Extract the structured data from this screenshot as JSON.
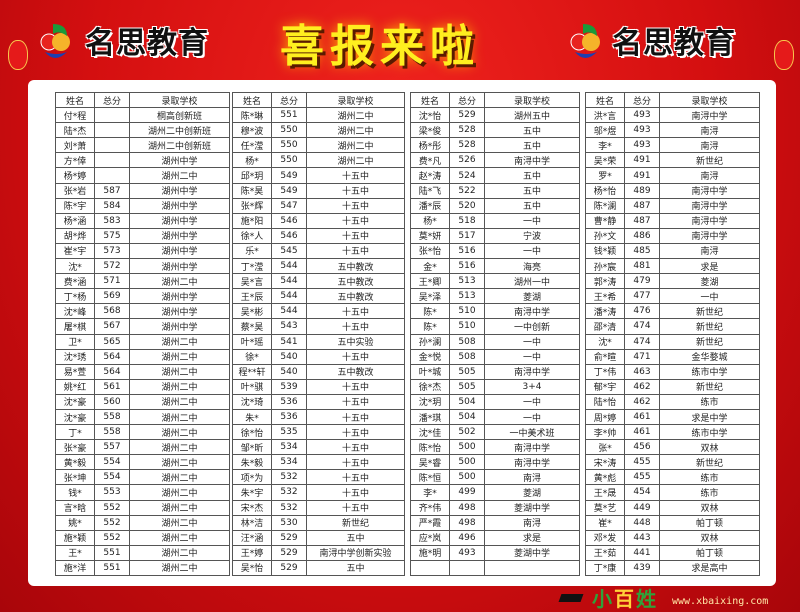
{
  "header": {
    "brand": "名思教育",
    "title": "喜报来啦"
  },
  "columns": [
    "姓名",
    "总分",
    "录取学校"
  ],
  "tables": [
    [
      [
        "付*程",
        "",
        "桐高创新班"
      ],
      [
        "陆*杰",
        "",
        "湖州二中创新班"
      ],
      [
        "刘*萧",
        "",
        "湖州二中创新班"
      ],
      [
        "方*倖",
        "",
        "湖州中学"
      ],
      [
        "杨*婷",
        "",
        "湖州二中"
      ],
      [
        "张*岩",
        "587",
        "湖州中学"
      ],
      [
        "陈*宇",
        "584",
        "湖州中学"
      ],
      [
        "杨*涵",
        "583",
        "湖州中学"
      ],
      [
        "胡*烨",
        "575",
        "湖州中学"
      ],
      [
        "崔*宇",
        "573",
        "湖州中学"
      ],
      [
        "沈*",
        "572",
        "湖州中学"
      ],
      [
        "费*涵",
        "571",
        "湖州二中"
      ],
      [
        "丁*杨",
        "569",
        "湖州中学"
      ],
      [
        "沈*峰",
        "568",
        "湖州中学"
      ],
      [
        "屠*棋",
        "567",
        "湖州中学"
      ],
      [
        "卫*",
        "565",
        "湖州二中"
      ],
      [
        "沈*琇",
        "564",
        "湖州二中"
      ],
      [
        "易*萱",
        "564",
        "湖州二中"
      ],
      [
        "姚*红",
        "561",
        "湖州二中"
      ],
      [
        "沈*豪",
        "560",
        "湖州二中"
      ],
      [
        "沈*豪",
        "558",
        "湖州二中"
      ],
      [
        "丁*",
        "558",
        "湖州二中"
      ],
      [
        "张*豪",
        "557",
        "湖州二中"
      ],
      [
        "黄*毅",
        "554",
        "湖州二中"
      ],
      [
        "张*坤",
        "554",
        "湖州二中"
      ],
      [
        "钱*",
        "553",
        "湖州二中"
      ],
      [
        "言*晗",
        "552",
        "湖州二中"
      ],
      [
        "姚*",
        "552",
        "湖州二中"
      ],
      [
        "施*颖",
        "552",
        "湖州二中"
      ],
      [
        "王*",
        "551",
        "湖州二中"
      ],
      [
        "施*洋",
        "551",
        "湖州二中"
      ]
    ],
    [
      [
        "陈*琳",
        "551",
        "湖州二中"
      ],
      [
        "穆*波",
        "550",
        "湖州二中"
      ],
      [
        "任*滢",
        "550",
        "湖州二中"
      ],
      [
        "杨*",
        "550",
        "湖州二中"
      ],
      [
        "邱*玥",
        "549",
        "十五中"
      ],
      [
        "陈*昊",
        "549",
        "十五中"
      ],
      [
        "张*辉",
        "547",
        "十五中"
      ],
      [
        "施*阳",
        "546",
        "十五中"
      ],
      [
        "徐*人",
        "546",
        "十五中"
      ],
      [
        "乐*",
        "545",
        "十五中"
      ],
      [
        "丁*滢",
        "544",
        "五中教改"
      ],
      [
        "吴*言",
        "544",
        "五中教改"
      ],
      [
        "王*辰",
        "544",
        "五中教改"
      ],
      [
        "吴*彬",
        "544",
        "十五中"
      ],
      [
        "蔡*昊",
        "543",
        "十五中"
      ],
      [
        "叶*瑶",
        "541",
        "五中实验"
      ],
      [
        "徐*",
        "540",
        "十五中"
      ],
      [
        "程**轩",
        "540",
        "五中教改"
      ],
      [
        "叶*骐",
        "539",
        "十五中"
      ],
      [
        "沈*琦",
        "536",
        "十五中"
      ],
      [
        "朱*",
        "536",
        "十五中"
      ],
      [
        "徐*怡",
        "535",
        "十五中"
      ],
      [
        "邹*昕",
        "534",
        "十五中"
      ],
      [
        "朱*毅",
        "534",
        "十五中"
      ],
      [
        "项*为",
        "532",
        "十五中"
      ],
      [
        "朱*宇",
        "532",
        "十五中"
      ],
      [
        "宋*杰",
        "532",
        "十五中"
      ],
      [
        "林*洁",
        "530",
        "新世纪"
      ],
      [
        "汪*涵",
        "529",
        "五中"
      ],
      [
        "王*婷",
        "529",
        "南浔中学创新实验"
      ],
      [
        "吴*怡",
        "529",
        "五中"
      ]
    ],
    [
      [
        "沈*怡",
        "529",
        "湖州五中"
      ],
      [
        "梁*俊",
        "528",
        "五中"
      ],
      [
        "杨*彤",
        "528",
        "五中"
      ],
      [
        "费*凡",
        "526",
        "南浔中学"
      ],
      [
        "赵*涛",
        "524",
        "五中"
      ],
      [
        "陆*飞",
        "522",
        "五中"
      ],
      [
        "潘*辰",
        "520",
        "五中"
      ],
      [
        "杨*",
        "518",
        "一中"
      ],
      [
        "莫*妍",
        "517",
        "宁波"
      ],
      [
        "张*怡",
        "516",
        "一中"
      ],
      [
        "金*",
        "516",
        "海亮"
      ],
      [
        "王*卿",
        "513",
        "湖州一中"
      ],
      [
        "吴*泽",
        "513",
        "菱湖"
      ],
      [
        "陈*",
        "510",
        "南浔中学"
      ],
      [
        "陈*",
        "510",
        "一中创新"
      ],
      [
        "孙*澜",
        "508",
        "一中"
      ],
      [
        "金*悦",
        "508",
        "一中"
      ],
      [
        "叶*城",
        "505",
        "南浔中学"
      ],
      [
        "徐*杰",
        "505",
        "3+4"
      ],
      [
        "沈*玥",
        "504",
        "一中"
      ],
      [
        "潘*琪",
        "504",
        "一中"
      ],
      [
        "沈*佳",
        "502",
        "一中美术班"
      ],
      [
        "陈*怡",
        "500",
        "南浔中学"
      ],
      [
        "吴*睿",
        "500",
        "南浔中学"
      ],
      [
        "陈*恒",
        "500",
        "南浔"
      ],
      [
        "李*",
        "499",
        "菱湖"
      ],
      [
        "齐*伟",
        "498",
        "菱湖中学"
      ],
      [
        "严*霞",
        "498",
        "南浔"
      ],
      [
        "应*岚",
        "496",
        "求是"
      ],
      [
        "施*明",
        "493",
        "菱湖中学"
      ],
      [
        "",
        "",
        ""
      ]
    ],
    [
      [
        "洪*言",
        "493",
        "南浔中学"
      ],
      [
        "邬*煜",
        "493",
        "南浔"
      ],
      [
        "李*",
        "493",
        "南浔"
      ],
      [
        "吴*荣",
        "491",
        "新世纪"
      ],
      [
        "罗*",
        "491",
        "南浔"
      ],
      [
        "杨*怡",
        "489",
        "南浔中学"
      ],
      [
        "陈*澜",
        "487",
        "南浔中学"
      ],
      [
        "曹*静",
        "487",
        "南浔中学"
      ],
      [
        "孙*文",
        "486",
        "南浔中学"
      ],
      [
        "钱*颖",
        "485",
        "南浔"
      ],
      [
        "孙*宸",
        "481",
        "求是"
      ],
      [
        "郭*涛",
        "479",
        "菱湖"
      ],
      [
        "王*希",
        "477",
        "一中"
      ],
      [
        "潘*涛",
        "476",
        "新世纪"
      ],
      [
        "邵*清",
        "474",
        "新世纪"
      ],
      [
        "沈*",
        "474",
        "新世纪"
      ],
      [
        "俞*暄",
        "471",
        "金华婺城"
      ],
      [
        "丁*伟",
        "463",
        "练市中学"
      ],
      [
        "郁*宇",
        "462",
        "新世纪"
      ],
      [
        "陆*怡",
        "462",
        "练市"
      ],
      [
        "周*婷",
        "461",
        "求是中学"
      ],
      [
        "李*帅",
        "461",
        "练市中学"
      ],
      [
        "张*",
        "456",
        "双林"
      ],
      [
        "宋*涛",
        "455",
        "新世纪"
      ],
      [
        "黄*彪",
        "455",
        "练市"
      ],
      [
        "王*晟",
        "454",
        "练市"
      ],
      [
        "莫*艺",
        "449",
        "双林"
      ],
      [
        "崔*",
        "448",
        "帕丁顿"
      ],
      [
        "邓*发",
        "443",
        "双林"
      ],
      [
        "王*茹",
        "441",
        "帕丁顿"
      ],
      [
        "丁*康",
        "439",
        "求是高中"
      ]
    ]
  ],
  "watermark": {
    "logo": "小百姓",
    "url": "www.xbaixing.com"
  },
  "colors": {
    "background": "#d40f10",
    "title": "#ffef1f",
    "panel": "#ffffff"
  }
}
